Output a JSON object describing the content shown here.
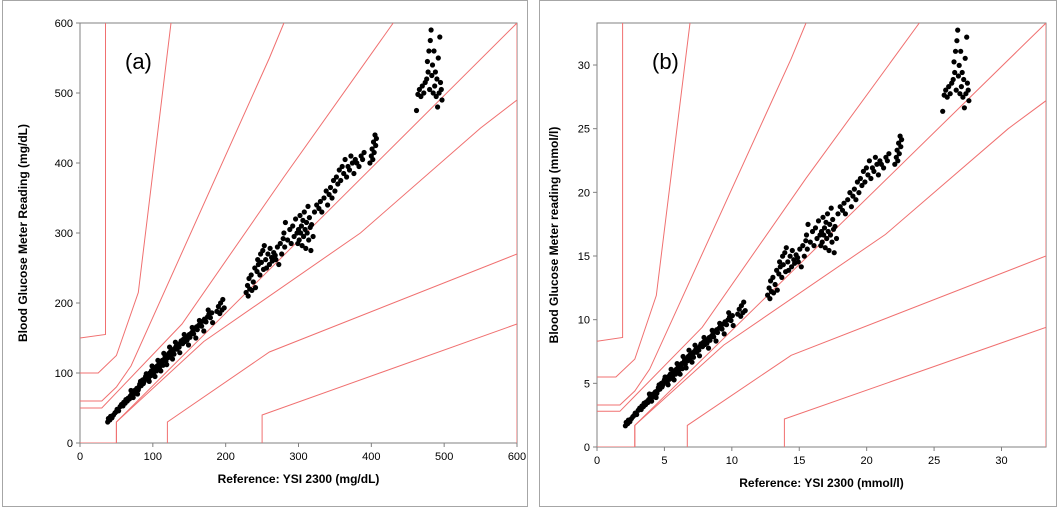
{
  "chart_data": [
    {
      "type": "scatter",
      "panel_label": "(a)",
      "xlabel": "Reference: YSI 2300 (mg/dL)",
      "ylabel": "Blood Glucose Meter Reading (mg/dL)",
      "xlim": [
        0,
        600
      ],
      "ylim": [
        0,
        600
      ],
      "xticks": [
        0,
        100,
        200,
        300,
        400,
        500,
        600
      ],
      "yticks": [
        0,
        100,
        200,
        300,
        400,
        500,
        600
      ],
      "grid": false,
      "zone_color": "#f07070",
      "point_color": "#000000",
      "zone_lines": [
        [
          [
            0,
            150
          ],
          [
            35,
            155
          ],
          [
            35,
            600
          ]
        ],
        [
          [
            0,
            100
          ],
          [
            25,
            100
          ],
          [
            50,
            125
          ],
          [
            80,
            215
          ],
          [
            125,
            600
          ]
        ],
        [
          [
            0,
            60
          ],
          [
            30,
            60
          ],
          [
            50,
            80
          ],
          [
            70,
            110
          ],
          [
            260,
            550
          ],
          [
            280,
            600
          ]
        ],
        [
          [
            0,
            50
          ],
          [
            30,
            50
          ],
          [
            140,
            170
          ],
          [
            280,
            380
          ],
          [
            430,
            600
          ]
        ],
        [
          [
            0,
            0
          ],
          [
            50,
            0
          ],
          [
            50,
            30
          ],
          [
            600,
            600
          ]
        ],
        [
          [
            50,
            0
          ],
          [
            50,
            30
          ],
          [
            170,
            145
          ],
          [
            385,
            300
          ],
          [
            550,
            450
          ],
          [
            600,
            490
          ]
        ],
        [
          [
            120,
            0
          ],
          [
            120,
            30
          ],
          [
            260,
            130
          ],
          [
            600,
            270
          ]
        ],
        [
          [
            250,
            0
          ],
          [
            250,
            40
          ],
          [
            600,
            170
          ]
        ],
        [
          [
            600,
            0
          ],
          [
            600,
            600
          ]
        ]
      ],
      "points": [
        [
          38,
          30
        ],
        [
          39,
          35
        ],
        [
          41,
          33
        ],
        [
          42,
          38
        ],
        [
          44,
          36
        ],
        [
          46,
          40
        ],
        [
          48,
          43
        ],
        [
          50,
          45
        ],
        [
          51,
          48
        ],
        [
          53,
          46
        ],
        [
          55,
          52
        ],
        [
          57,
          55
        ],
        [
          59,
          53
        ],
        [
          60,
          58
        ],
        [
          62,
          57
        ],
        [
          63,
          62
        ],
        [
          65,
          60
        ],
        [
          66,
          64
        ],
        [
          68,
          63
        ],
        [
          69,
          67
        ],
        [
          71,
          70
        ],
        [
          72,
          68
        ],
        [
          74,
          72
        ],
        [
          75,
          75
        ],
        [
          76,
          71
        ],
        [
          78,
          78
        ],
        [
          80,
          76
        ],
        [
          81,
          80
        ],
        [
          82,
          84
        ],
        [
          84,
          82
        ],
        [
          85,
          86
        ],
        [
          86,
          90
        ],
        [
          88,
          88
        ],
        [
          89,
          92
        ],
        [
          90,
          95
        ],
        [
          92,
          93
        ],
        [
          93,
          97
        ],
        [
          94,
          91
        ],
        [
          96,
          100
        ],
        [
          97,
          96
        ],
        [
          98,
          103
        ],
        [
          100,
          101
        ],
        [
          101,
          98
        ],
        [
          102,
          105
        ],
        [
          104,
          108
        ],
        [
          105,
          103
        ],
        [
          106,
          110
        ],
        [
          108,
          112
        ],
        [
          109,
          107
        ],
        [
          110,
          115
        ],
        [
          112,
          114
        ],
        [
          113,
          118
        ],
        [
          114,
          111
        ],
        [
          116,
          120
        ],
        [
          117,
          123
        ],
        [
          118,
          117
        ],
        [
          120,
          125
        ],
        [
          121,
          122
        ],
        [
          122,
          128
        ],
        [
          124,
          130
        ],
        [
          125,
          126
        ],
        [
          126,
          133
        ],
        [
          128,
          131
        ],
        [
          129,
          127
        ],
        [
          130,
          135
        ],
        [
          132,
          138
        ],
        [
          133,
          134
        ],
        [
          135,
          140
        ],
        [
          136,
          137
        ],
        [
          138,
          143
        ],
        [
          139,
          146
        ],
        [
          141,
          142
        ],
        [
          142,
          148
        ],
        [
          144,
          145
        ],
        [
          145,
          150
        ],
        [
          147,
          147
        ],
        [
          148,
          152
        ],
        [
          150,
          155
        ],
        [
          151,
          151
        ],
        [
          153,
          157
        ],
        [
          155,
          160
        ],
        [
          156,
          156
        ],
        [
          158,
          163
        ],
        [
          160,
          166
        ],
        [
          161,
          162
        ],
        [
          163,
          168
        ],
        [
          165,
          171
        ],
        [
          167,
          167
        ],
        [
          169,
          174
        ],
        [
          171,
          177
        ],
        [
          173,
          173
        ],
        [
          175,
          180
        ],
        [
          177,
          184
        ],
        [
          179,
          179
        ],
        [
          181,
          186
        ],
        [
          70,
          75
        ],
        [
          73,
          65
        ],
        [
          79,
          70
        ],
        [
          83,
          88
        ],
        [
          87,
          85
        ],
        [
          91,
          99
        ],
        [
          95,
          88
        ],
        [
          99,
          110
        ],
        [
          103,
          95
        ],
        [
          107,
          118
        ],
        [
          111,
          103
        ],
        [
          115,
          128
        ],
        [
          119,
          112
        ],
        [
          123,
          137
        ],
        [
          127,
          120
        ],
        [
          131,
          144
        ],
        [
          137,
          129
        ],
        [
          143,
          155
        ],
        [
          149,
          140
        ],
        [
          154,
          165
        ],
        [
          159,
          150
        ],
        [
          164,
          175
        ],
        [
          170,
          160
        ],
        [
          176,
          190
        ],
        [
          182,
          172
        ],
        [
          188,
          188
        ],
        [
          190,
          195
        ],
        [
          192,
          185
        ],
        [
          193,
          200
        ],
        [
          195,
          190
        ],
        [
          196,
          205
        ],
        [
          198,
          193
        ],
        [
          228,
          215
        ],
        [
          230,
          225
        ],
        [
          231,
          210
        ],
        [
          232,
          235
        ],
        [
          233,
          220
        ],
        [
          235,
          240
        ],
        [
          236,
          218
        ],
        [
          238,
          230
        ],
        [
          240,
          250
        ],
        [
          241,
          222
        ],
        [
          243,
          245
        ],
        [
          244,
          262
        ],
        [
          245,
          255
        ],
        [
          247,
          240
        ],
        [
          248,
          270
        ],
        [
          249,
          258
        ],
        [
          251,
          275
        ],
        [
          252,
          248
        ],
        [
          253,
          282
        ],
        [
          255,
          262
        ],
        [
          256,
          250
        ],
        [
          258,
          270
        ],
        [
          260,
          255
        ],
        [
          261,
          278
        ],
        [
          263,
          265
        ],
        [
          264,
          260
        ],
        [
          266,
          272
        ],
        [
          268,
          268
        ],
        [
          269,
          262
        ],
        [
          271,
          280
        ],
        [
          273,
          255
        ],
        [
          275,
          285
        ],
        [
          277,
          270
        ],
        [
          279,
          292
        ],
        [
          280,
          300
        ],
        [
          281,
          280
        ],
        [
          282,
          315
        ],
        [
          285,
          290
        ],
        [
          288,
          305
        ],
        [
          290,
          285
        ],
        [
          292,
          310
        ],
        [
          294,
          295
        ],
        [
          296,
          320
        ],
        [
          298,
          300
        ],
        [
          299,
          285
        ],
        [
          300,
          305
        ],
        [
          301,
          290
        ],
        [
          302,
          325
        ],
        [
          303,
          300
        ],
        [
          304,
          310
        ],
        [
          305,
          282
        ],
        [
          306,
          318
        ],
        [
          307,
          295
        ],
        [
          308,
          330
        ],
        [
          309,
          305
        ],
        [
          310,
          278
        ],
        [
          311,
          315
        ],
        [
          312,
          300
        ],
        [
          313,
          338
        ],
        [
          314,
          290
        ],
        [
          315,
          322
        ],
        [
          316,
          308
        ],
        [
          317,
          275
        ],
        [
          318,
          312
        ],
        [
          320,
          295
        ],
        [
          322,
          330
        ],
        [
          325,
          340
        ],
        [
          328,
          335
        ],
        [
          330,
          345
        ],
        [
          332,
          330
        ],
        [
          335,
          350
        ],
        [
          338,
          360
        ],
        [
          340,
          340
        ],
        [
          342,
          355
        ],
        [
          344,
          365
        ],
        [
          346,
          350
        ],
        [
          348,
          375
        ],
        [
          350,
          360
        ],
        [
          352,
          380
        ],
        [
          354,
          370
        ],
        [
          356,
          390
        ],
        [
          358,
          375
        ],
        [
          360,
          395
        ],
        [
          362,
          385
        ],
        [
          364,
          405
        ],
        [
          366,
          380
        ],
        [
          368,
          395
        ],
        [
          370,
          390
        ],
        [
          372,
          410
        ],
        [
          374,
          400
        ],
        [
          376,
          385
        ],
        [
          378,
          405
        ],
        [
          380,
          400
        ],
        [
          383,
          395
        ],
        [
          386,
          410
        ],
        [
          388,
          405
        ],
        [
          390,
          415
        ],
        [
          398,
          400
        ],
        [
          400,
          410
        ],
        [
          401,
          420
        ],
        [
          402,
          405
        ],
        [
          403,
          430
        ],
        [
          404,
          415
        ],
        [
          405,
          440
        ],
        [
          406,
          425
        ],
        [
          407,
          435
        ],
        [
          462,
          475
        ],
        [
          464,
          498
        ],
        [
          466,
          505
        ],
        [
          468,
          495
        ],
        [
          470,
          510
        ],
        [
          472,
          500
        ],
        [
          474,
          515
        ],
        [
          476,
          520
        ],
        [
          477,
          545
        ],
        [
          478,
          530
        ],
        [
          479,
          560
        ],
        [
          480,
          505
        ],
        [
          481,
          575
        ],
        [
          482,
          590
        ],
        [
          483,
          525
        ],
        [
          484,
          540
        ],
        [
          485,
          500
        ],
        [
          486,
          560
        ],
        [
          487,
          510
        ],
        [
          488,
          530
        ],
        [
          489,
          495
        ],
        [
          490,
          520
        ],
        [
          491,
          480
        ],
        [
          492,
          550
        ],
        [
          493,
          500
        ],
        [
          494,
          580
        ],
        [
          495,
          515
        ],
        [
          496,
          505
        ],
        [
          497,
          490
        ]
      ]
    },
    {
      "type": "scatter",
      "panel_label": "(b)",
      "xlabel": "Reference: YSI 2300 (mmol/l)",
      "ylabel": "Blood Glucose Meter reading (mmol/l)",
      "xlim": [
        0,
        33.3
      ],
      "ylim": [
        0,
        33.3
      ],
      "xticks": [
        0,
        5,
        10,
        15,
        20,
        25,
        30
      ],
      "yticks": [
        0,
        5,
        10,
        15,
        20,
        25,
        30
      ],
      "grid": false,
      "zone_color": "#f07070",
      "point_color": "#000000",
      "scale_from_a": 0.0555,
      "zone_lines": [
        [
          [
            0,
            8.3
          ],
          [
            1.9,
            8.6
          ],
          [
            1.9,
            33.3
          ]
        ],
        [
          [
            0,
            5.5
          ],
          [
            1.4,
            5.5
          ],
          [
            2.8,
            6.9
          ],
          [
            4.4,
            11.9
          ],
          [
            6.9,
            33.3
          ]
        ],
        [
          [
            0,
            3.3
          ],
          [
            1.7,
            3.3
          ],
          [
            2.8,
            4.4
          ],
          [
            3.9,
            6.1
          ],
          [
            14.4,
            30.5
          ],
          [
            15.5,
            33.3
          ]
        ],
        [
          [
            0,
            2.8
          ],
          [
            1.7,
            2.8
          ],
          [
            7.8,
            9.4
          ],
          [
            15.5,
            21.1
          ],
          [
            23.9,
            33.3
          ]
        ],
        [
          [
            0,
            0
          ],
          [
            2.8,
            0
          ],
          [
            2.8,
            1.7
          ],
          [
            33.3,
            33.3
          ]
        ],
        [
          [
            2.8,
            0
          ],
          [
            2.8,
            1.7
          ],
          [
            9.4,
            8.0
          ],
          [
            21.4,
            16.7
          ],
          [
            30.5,
            25.0
          ],
          [
            33.3,
            27.2
          ]
        ],
        [
          [
            6.7,
            0
          ],
          [
            6.7,
            1.7
          ],
          [
            14.4,
            7.2
          ],
          [
            33.3,
            15.0
          ]
        ],
        [
          [
            13.9,
            0
          ],
          [
            13.9,
            2.2
          ],
          [
            33.3,
            9.4
          ]
        ],
        [
          [
            33.3,
            0
          ],
          [
            33.3,
            33.3
          ]
        ]
      ]
    }
  ]
}
